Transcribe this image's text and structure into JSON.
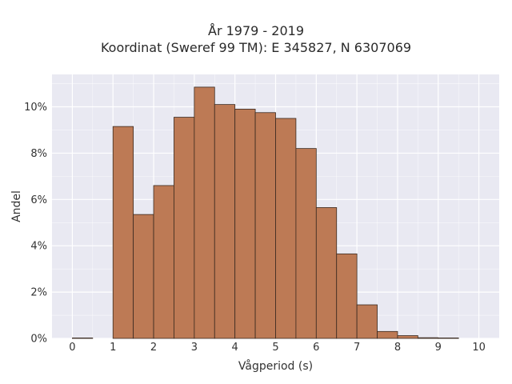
{
  "chart_data": {
    "type": "bar",
    "title_line1": "År 1979 - 2019",
    "title_line2": "Koordinat (Sweref 99 TM): E 345827, N 6307069",
    "xlabel": "Vågperiod (s)",
    "ylabel": "Andel",
    "bin_width": 0.5,
    "bins_start": [
      0,
      0.5,
      1,
      1.5,
      2,
      2.5,
      3,
      3.5,
      4,
      4.5,
      5,
      5.5,
      6,
      6.5,
      7,
      7.5,
      8,
      8.5,
      9,
      9.5
    ],
    "values": [
      0.02,
      0,
      9.15,
      5.35,
      6.6,
      9.55,
      10.85,
      10.1,
      9.9,
      9.75,
      9.5,
      8.2,
      5.65,
      3.65,
      1.45,
      0.3,
      0.12,
      0.03,
      0.02,
      0
    ],
    "x_ticks": [
      "0",
      "1",
      "2",
      "3",
      "4",
      "5",
      "6",
      "7",
      "8",
      "9",
      "10"
    ],
    "y_ticks": [
      "0%",
      "2%",
      "4%",
      "6%",
      "8%",
      "10%"
    ],
    "xlim": [
      -0.5,
      10.5
    ],
    "ylim": [
      0,
      11.4
    ],
    "grid": true,
    "colors": {
      "bar_fill": "#bd7a55",
      "bar_stroke": "#3a2a20",
      "plot_bg": "#e9e9f2",
      "grid": "#ffffff"
    }
  }
}
